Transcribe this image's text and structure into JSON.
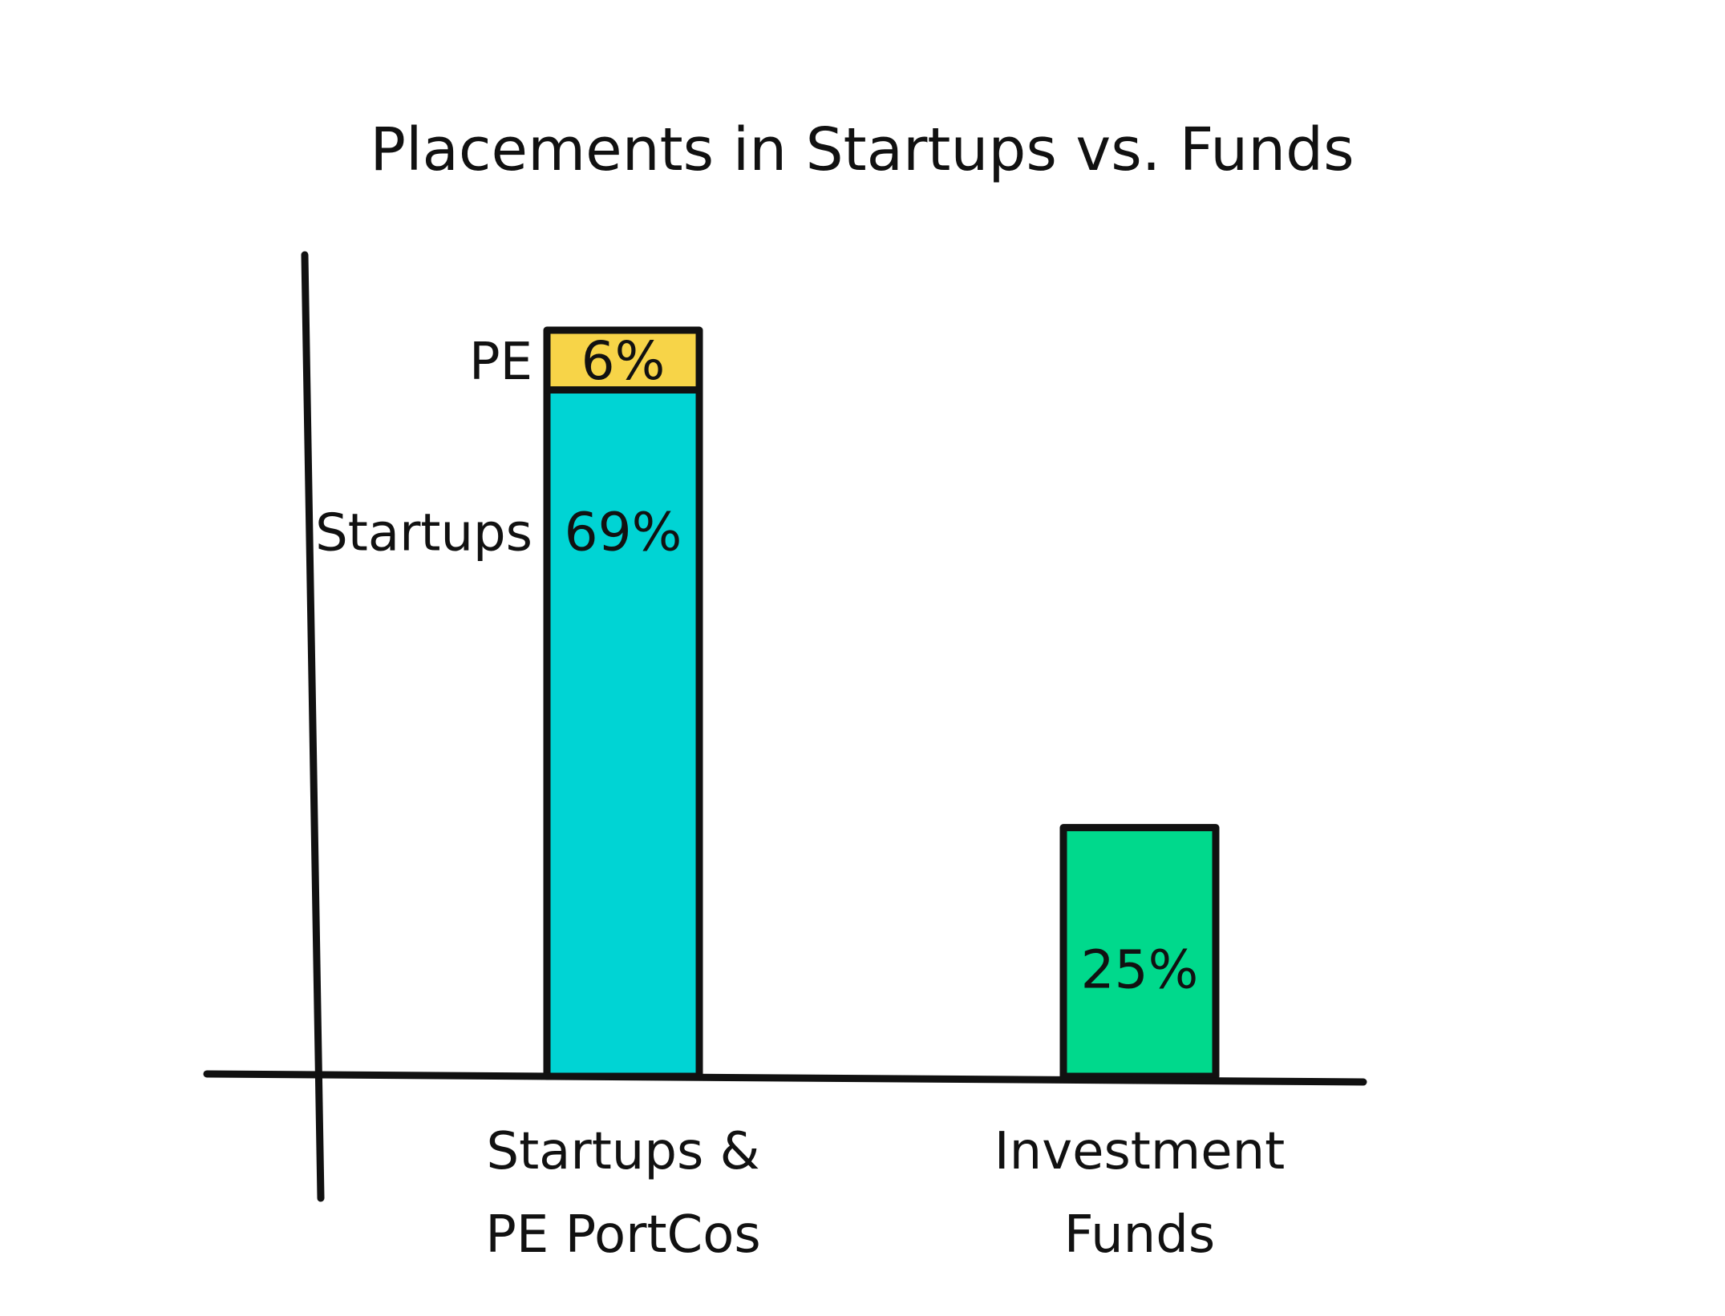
{
  "chart_data": {
    "type": "bar",
    "stacked": true,
    "title": "Placements in Startups vs. Funds",
    "categories": [
      "Startups & PE PortCos",
      "Investment Funds"
    ],
    "category_label_lines": [
      [
        "Startups &",
        "PE PortCos"
      ],
      [
        "Investment",
        "Funds"
      ]
    ],
    "series": [
      {
        "name": "Startups",
        "values": [
          69,
          null
        ],
        "labels": [
          "69%",
          ""
        ],
        "color": "#00D4D4"
      },
      {
        "name": "PE",
        "values": [
          6,
          null
        ],
        "labels": [
          "6%",
          ""
        ],
        "color": "#F7D448"
      },
      {
        "name": "",
        "values": [
          null,
          25
        ],
        "labels": [
          "",
          "25%"
        ],
        "color": "#00D98C"
      }
    ],
    "ylim": [
      0,
      85
    ],
    "grid": false,
    "xlabel": "",
    "ylabel": ""
  }
}
